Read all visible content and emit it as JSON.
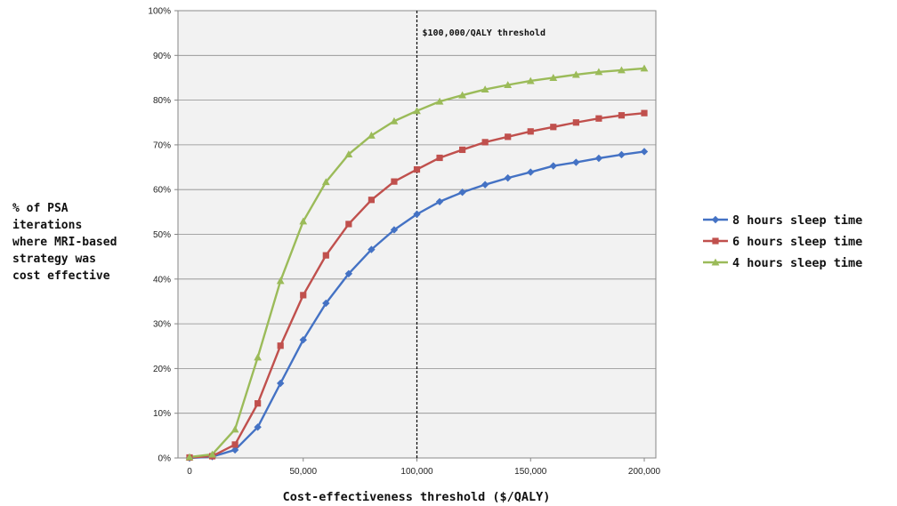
{
  "chart_data": {
    "type": "line",
    "xlabel": "Cost-effectiveness threshold ($/QALY)",
    "ylabel_lines": [
      "% of PSA",
      "iterations",
      "where MRI-based",
      "strategy was",
      "cost effective"
    ],
    "xlim": [
      0,
      200000
    ],
    "ylim": [
      0,
      100
    ],
    "x_ticks": [
      "0",
      "50,000",
      "100,000",
      "150,000",
      "200,000"
    ],
    "y_ticks": [
      "0%",
      "10%",
      "20%",
      "30%",
      "40%",
      "50%",
      "60%",
      "70%",
      "80%",
      "90%",
      "100%"
    ],
    "grid": true,
    "legend_position": "right",
    "annotation": {
      "label": "$100,000/QALY threshold",
      "x": 100000,
      "style": "dashed vertical line"
    },
    "x": [
      0,
      10000,
      20000,
      30000,
      40000,
      50000,
      60000,
      70000,
      80000,
      90000,
      100000,
      110000,
      120000,
      130000,
      140000,
      150000,
      160000,
      170000,
      180000,
      190000,
      200000
    ],
    "series": [
      {
        "name": "8 hours sleep time",
        "color": "#4472C4",
        "marker": "diamond",
        "values": [
          0,
          0.3,
          1.8,
          6.9,
          16.7,
          26.4,
          34.6,
          41.2,
          46.6,
          51.0,
          54.5,
          57.3,
          59.4,
          61.1,
          62.6,
          63.9,
          65.3,
          66.1,
          67.0,
          67.8,
          68.5
        ]
      },
      {
        "name": "6 hours sleep time",
        "color": "#C0504D",
        "marker": "square",
        "values": [
          0.1,
          0.4,
          3.0,
          12.2,
          25.1,
          36.4,
          45.3,
          52.3,
          57.7,
          61.8,
          64.5,
          67.1,
          68.9,
          70.6,
          71.8,
          73.0,
          74.0,
          75.0,
          75.9,
          76.6,
          77.1
        ]
      },
      {
        "name": "4 hours sleep time",
        "color": "#9BBB59",
        "marker": "triangle",
        "values": [
          0.2,
          0.8,
          6.4,
          22.5,
          39.6,
          52.9,
          61.7,
          67.9,
          72.1,
          75.3,
          77.6,
          79.7,
          81.1,
          82.4,
          83.4,
          84.3,
          85.0,
          85.7,
          86.3,
          86.7,
          87.1
        ]
      }
    ]
  }
}
